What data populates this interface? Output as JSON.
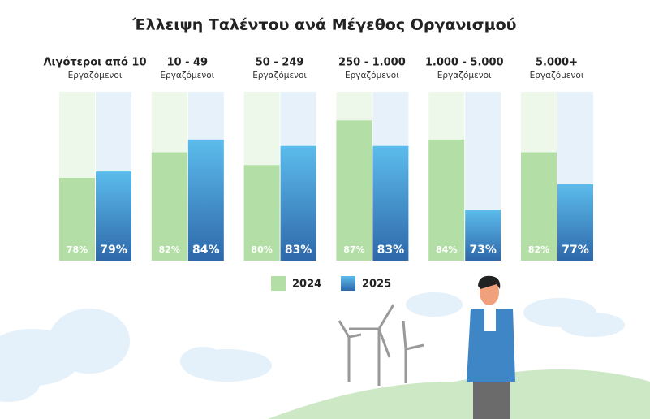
{
  "chart_data": {
    "type": "bar",
    "title": "Έλλειψη Ταλέντου ανά Μέγεθος Οργανισμού",
    "categories": [
      "Λιγότεροι από 10",
      "10 - 49",
      "50 - 249",
      "250 - 1.000",
      "1.000 - 5.000",
      "5.000+"
    ],
    "category_sublabels": [
      "Εργαζόμενοι",
      "Εργαζόμενοι",
      "Εργαζόμενοι",
      "Εργαζόμενοι",
      "Εργαζόμενοι",
      "Εργαζόμενοι"
    ],
    "series": [
      {
        "name": "2024",
        "color": "#b3dfa6",
        "values": [
          78,
          82,
          80,
          87,
          84,
          82
        ],
        "value_labels": [
          "78%",
          "82%",
          "80%",
          "87%",
          "84%",
          "82%"
        ]
      },
      {
        "name": "2025",
        "color": "#3f8fd0",
        "values": [
          79,
          84,
          83,
          83,
          73,
          77
        ],
        "value_labels": [
          "79%",
          "84%",
          "83%",
          "83%",
          "73%",
          "77%"
        ]
      }
    ],
    "ylim": [
      65,
      91.5
    ],
    "legend": "bottom"
  }
}
